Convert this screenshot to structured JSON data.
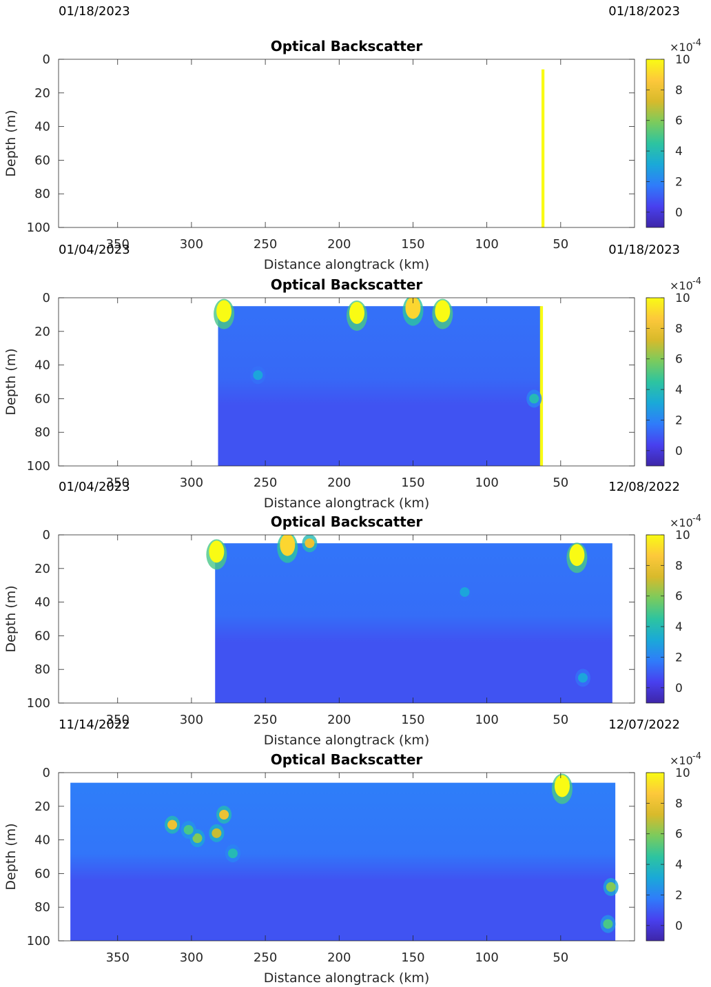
{
  "figure": {
    "colormap": [
      "#3e26a8",
      "#4840ef",
      "#2f7cfa",
      "#1aa9d8",
      "#2dc4a0",
      "#7bcb5d",
      "#d8ba2b",
      "#fdc83b",
      "#f9fb14"
    ],
    "colorbar": {
      "ticks": [
        "0",
        "2",
        "4",
        "6",
        "8",
        "10"
      ],
      "exponent_base": "×10",
      "exponent_power": "-4"
    }
  },
  "chart_data": [
    {
      "type": "heatmap",
      "title": "Optical Backscatter",
      "xlabel": "Distance alongtrack (km)",
      "ylabel": "Depth (m)",
      "xlim": [
        390,
        0
      ],
      "ylim": [
        0,
        100
      ],
      "x_ticks": [
        "350",
        "300",
        "250",
        "200",
        "150",
        "100",
        "50"
      ],
      "y_ticks": [
        "0",
        "20",
        "40",
        "60",
        "80",
        "100"
      ],
      "date_start": "01/18/2023",
      "date_end": "01/18/2023",
      "clim": [
        -1,
        10
      ],
      "data_extent": {
        "x": [
          63,
          61
        ],
        "depth": [
          6,
          100
        ]
      },
      "background_value": 10,
      "hotspots": []
    },
    {
      "type": "heatmap",
      "title": "Optical Backscatter",
      "xlabel": "Distance alongtrack (km)",
      "ylabel": "Depth (m)",
      "xlim": [
        390,
        0
      ],
      "ylim": [
        0,
        100
      ],
      "x_ticks": [
        "350",
        "300",
        "250",
        "200",
        "150",
        "100",
        "50"
      ],
      "y_ticks": [
        "0",
        "20",
        "40",
        "60",
        "80",
        "100"
      ],
      "date_start": "01/04/2023",
      "date_end": "01/18/2023",
      "clim": [
        -1,
        10
      ],
      "data_extent": {
        "x": [
          282,
          63
        ],
        "depth": [
          5,
          100
        ]
      },
      "background_value": 1.5,
      "deep_value": 0.8,
      "edge_strip": {
        "x": [
          64,
          62
        ],
        "value": 10
      },
      "hotspots": [
        {
          "x": 278,
          "depth": 8,
          "value": 10
        },
        {
          "x": 188,
          "depth": 9,
          "value": 10
        },
        {
          "x": 150,
          "depth": 6,
          "value": 9
        },
        {
          "x": 130,
          "depth": 8,
          "value": 10
        },
        {
          "x": 255,
          "depth": 46,
          "value": 3
        },
        {
          "x": 68,
          "depth": 60,
          "value": 4
        }
      ]
    },
    {
      "type": "heatmap",
      "title": "Optical Backscatter",
      "xlabel": "Distance alongtrack (km)",
      "ylabel": "Depth (m)",
      "xlim": [
        390,
        0
      ],
      "ylim": [
        0,
        100
      ],
      "x_ticks": [
        "350",
        "300",
        "250",
        "200",
        "150",
        "100",
        "50"
      ],
      "y_ticks": [
        "0",
        "20",
        "40",
        "60",
        "80",
        "100"
      ],
      "date_start": "01/04/2023",
      "date_end": "12/08/2022",
      "clim": [
        -1,
        10
      ],
      "data_extent": {
        "x": [
          284,
          15
        ],
        "depth": [
          5,
          100
        ]
      },
      "background_value": 1.6,
      "deep_value": 0.8,
      "hotspots": [
        {
          "x": 283,
          "depth": 10,
          "value": 10
        },
        {
          "x": 235,
          "depth": 6,
          "value": 9
        },
        {
          "x": 220,
          "depth": 5,
          "value": 8
        },
        {
          "x": 39,
          "depth": 12,
          "value": 10
        },
        {
          "x": 115,
          "depth": 34,
          "value": 3
        },
        {
          "x": 35,
          "depth": 85,
          "value": 3
        }
      ]
    },
    {
      "type": "heatmap",
      "title": "Optical Backscatter",
      "xlabel": "Distance alongtrack (km)",
      "ylabel": "Depth (m)",
      "xlim": [
        390,
        0
      ],
      "ylim": [
        0,
        100
      ],
      "x_ticks": [
        "350",
        "300",
        "250",
        "200",
        "150",
        "100",
        "50"
      ],
      "y_ticks": [
        "0",
        "20",
        "40",
        "60",
        "80",
        "100"
      ],
      "date_start": "11/14/2022",
      "date_end": "12/07/2022",
      "clim": [
        -1,
        10
      ],
      "data_extent": {
        "x": [
          382,
          13
        ],
        "depth": [
          6,
          100
        ]
      },
      "background_value": 1.8,
      "deep_value": 0.8,
      "hotspots": [
        {
          "x": 313,
          "depth": 31,
          "value": 8
        },
        {
          "x": 296,
          "depth": 39,
          "value": 6
        },
        {
          "x": 283,
          "depth": 36,
          "value": 7
        },
        {
          "x": 278,
          "depth": 25,
          "value": 8
        },
        {
          "x": 302,
          "depth": 34,
          "value": 5
        },
        {
          "x": 272,
          "depth": 48,
          "value": 4
        },
        {
          "x": 49,
          "depth": 8,
          "value": 10
        },
        {
          "x": 16,
          "depth": 68,
          "value": 6
        },
        {
          "x": 18,
          "depth": 90,
          "value": 5
        }
      ]
    }
  ]
}
